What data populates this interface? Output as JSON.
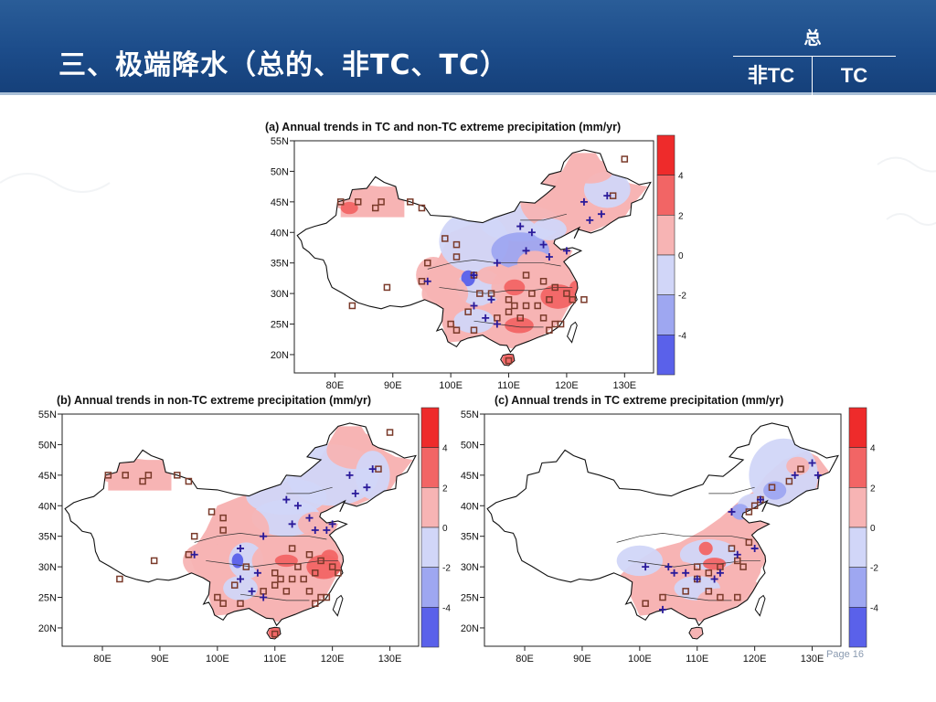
{
  "slide": {
    "title": "三、极端降水（总的、非TC、TC）",
    "table": {
      "top": "总",
      "left": "非TC",
      "right": "TC"
    },
    "page_label": "Page 16"
  },
  "colors": {
    "header": "#1c4c8a",
    "red_strong": "#ee2b2b",
    "red_mid": "#f26565",
    "red_light": "#f7b4b4",
    "blue_light": "#d1d6f8",
    "blue_mid": "#9ea7f1",
    "blue_strong": "#5a61ea",
    "marker_square": "#7a3a2a",
    "marker_plus": "#2a1a9a"
  },
  "chart_data": [
    {
      "type": "heatmap",
      "panel": "a",
      "title": "(a) Annual trends in TC and non-TC extreme precipitation (mm/yr)",
      "x_ticks": [
        "80E",
        "90E",
        "100E",
        "110E",
        "120E",
        "130E"
      ],
      "y_ticks": [
        "55N",
        "50N",
        "45N",
        "40N",
        "35N",
        "30N",
        "25N",
        "20N"
      ],
      "xlim": [
        73,
        135
      ],
      "ylim": [
        17,
        55
      ],
      "colorbar": {
        "ticks": [
          "4",
          "2",
          "0",
          "-2",
          "-4"
        ],
        "range": [
          -6,
          6
        ]
      },
      "markers": {
        "increase_sites": [
          [
            87,
            44
          ],
          [
            84,
            45
          ],
          [
            81,
            45
          ],
          [
            88,
            45
          ],
          [
            93,
            45
          ],
          [
            95,
            44
          ],
          [
            96,
            35
          ],
          [
            89,
            31
          ],
          [
            83,
            28
          ],
          [
            95,
            32
          ],
          [
            101,
            38
          ],
          [
            99,
            39
          ],
          [
            101,
            36
          ],
          [
            107,
            30
          ],
          [
            103,
            27
          ],
          [
            105,
            30
          ],
          [
            100,
            25
          ],
          [
            101,
            24
          ],
          [
            104,
            24
          ],
          [
            113,
            33
          ],
          [
            114,
            30
          ],
          [
            116,
            32
          ],
          [
            118,
            31
          ],
          [
            120,
            30
          ],
          [
            121,
            29
          ],
          [
            117,
            29
          ],
          [
            113,
            28
          ],
          [
            111,
            28
          ],
          [
            110,
            27
          ],
          [
            108,
            26
          ],
          [
            112,
            26
          ],
          [
            116,
            26
          ],
          [
            118,
            25
          ],
          [
            117,
            24
          ],
          [
            119,
            25
          ],
          [
            110,
            19
          ],
          [
            128,
            46
          ],
          [
            130,
            52
          ],
          [
            123,
            29
          ],
          [
            115,
            28
          ],
          [
            110,
            29
          ],
          [
            104,
            33
          ]
        ],
        "decrease_sites": [
          [
            112,
            41
          ],
          [
            114,
            40
          ],
          [
            116,
            38
          ],
          [
            113,
            37
          ],
          [
            120,
            37
          ],
          [
            117,
            36
          ],
          [
            108,
            35
          ],
          [
            104,
            33
          ],
          [
            96,
            32
          ],
          [
            107,
            29
          ],
          [
            104,
            28
          ],
          [
            106,
            26
          ],
          [
            108,
            25
          ],
          [
            123,
            45
          ],
          [
            124,
            42
          ],
          [
            127,
            46
          ],
          [
            126,
            43
          ]
        ]
      }
    },
    {
      "type": "heatmap",
      "panel": "b",
      "title": "(b) Annual trends in non-TC extreme precipitation (mm/yr)",
      "x_ticks": [
        "80E",
        "90E",
        "100E",
        "110E",
        "120E",
        "130E"
      ],
      "y_ticks": [
        "55N",
        "50N",
        "45N",
        "40N",
        "35N",
        "30N",
        "25N",
        "20N"
      ],
      "xlim": [
        73,
        135
      ],
      "ylim": [
        17,
        55
      ],
      "colorbar": {
        "ticks": [
          "4",
          "2",
          "0",
          "-2",
          "-4"
        ],
        "range": [
          -6,
          6
        ]
      },
      "markers": {
        "increase_sites": [
          [
            87,
            44
          ],
          [
            84,
            45
          ],
          [
            81,
            45
          ],
          [
            88,
            45
          ],
          [
            93,
            45
          ],
          [
            95,
            44
          ],
          [
            96,
            35
          ],
          [
            89,
            31
          ],
          [
            83,
            28
          ],
          [
            95,
            32
          ],
          [
            101,
            38
          ],
          [
            99,
            39
          ],
          [
            101,
            36
          ],
          [
            103,
            27
          ],
          [
            105,
            30
          ],
          [
            100,
            25
          ],
          [
            101,
            24
          ],
          [
            104,
            24
          ],
          [
            113,
            33
          ],
          [
            114,
            30
          ],
          [
            116,
            32
          ],
          [
            118,
            31
          ],
          [
            120,
            30
          ],
          [
            121,
            29
          ],
          [
            117,
            29
          ],
          [
            113,
            28
          ],
          [
            111,
            28
          ],
          [
            110,
            27
          ],
          [
            108,
            26
          ],
          [
            112,
            26
          ],
          [
            116,
            26
          ],
          [
            118,
            25
          ],
          [
            117,
            24
          ],
          [
            119,
            25
          ],
          [
            110,
            19
          ],
          [
            130,
            52
          ],
          [
            128,
            46
          ],
          [
            115,
            28
          ],
          [
            110,
            29
          ]
        ],
        "decrease_sites": [
          [
            112,
            41
          ],
          [
            114,
            40
          ],
          [
            116,
            38
          ],
          [
            113,
            37
          ],
          [
            120,
            37
          ],
          [
            117,
            36
          ],
          [
            108,
            35
          ],
          [
            104,
            33
          ],
          [
            96,
            32
          ],
          [
            107,
            29
          ],
          [
            104,
            28
          ],
          [
            106,
            26
          ],
          [
            108,
            25
          ],
          [
            123,
            45
          ],
          [
            124,
            42
          ],
          [
            127,
            46
          ],
          [
            126,
            43
          ],
          [
            119,
            36
          ]
        ]
      }
    },
    {
      "type": "heatmap",
      "panel": "c",
      "title": "(c) Annual trends in TC extreme precipitation (mm/yr)",
      "x_ticks": [
        "80E",
        "90E",
        "100E",
        "110E",
        "120E",
        "130E"
      ],
      "y_ticks": [
        "55N",
        "50N",
        "45N",
        "40N",
        "35N",
        "30N",
        "25N",
        "20N"
      ],
      "xlim": [
        73,
        135
      ],
      "ylim": [
        17,
        55
      ],
      "colorbar": {
        "ticks": [
          "4",
          "2",
          "0",
          "-2",
          "-4"
        ],
        "range": [
          -6,
          6
        ]
      },
      "markers": {
        "increase_sites": [
          [
            128,
            46
          ],
          [
            126,
            44
          ],
          [
            123,
            43
          ],
          [
            121,
            41
          ],
          [
            120,
            40
          ],
          [
            119,
            39
          ],
          [
            116,
            33
          ],
          [
            117,
            31
          ],
          [
            118,
            30
          ],
          [
            114,
            30
          ],
          [
            112,
            29
          ],
          [
            110,
            28
          ],
          [
            108,
            26
          ],
          [
            112,
            26
          ],
          [
            114,
            25
          ],
          [
            117,
            25
          ],
          [
            104,
            25
          ],
          [
            101,
            24
          ],
          [
            110,
            30
          ],
          [
            119,
            34
          ]
        ],
        "decrease_sites": [
          [
            130,
            47
          ],
          [
            131,
            45
          ],
          [
            127,
            45
          ],
          [
            121,
            41
          ],
          [
            116,
            39
          ],
          [
            104,
            23
          ],
          [
            106,
            29
          ],
          [
            108,
            29
          ],
          [
            110,
            28
          ],
          [
            113,
            28
          ],
          [
            114,
            29
          ],
          [
            105,
            30
          ],
          [
            101,
            30
          ],
          [
            117,
            32
          ],
          [
            120,
            33
          ]
        ]
      }
    }
  ]
}
